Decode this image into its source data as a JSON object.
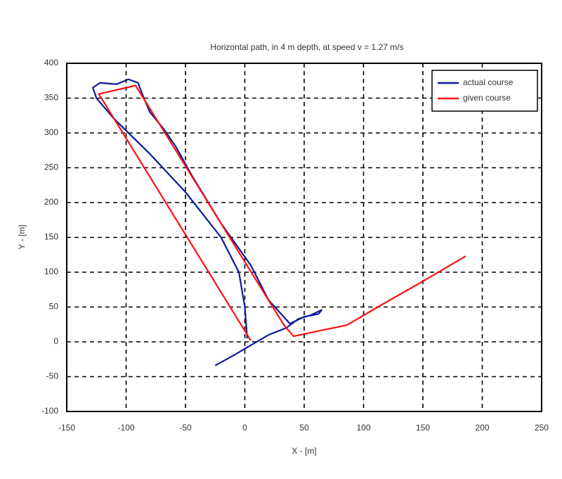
{
  "chart_data": {
    "type": "line",
    "title": "Horizontal path, in 4 m depth, at speed v = 1.27 m/s",
    "x_label": "X - [m]",
    "y_label": "Y - [m]",
    "xlim": [
      -150,
      250
    ],
    "ylim": [
      -100,
      400
    ],
    "xticks": [
      -150,
      -100,
      -50,
      0,
      50,
      100,
      150,
      200,
      250
    ],
    "yticks": [
      -100,
      -50,
      0,
      50,
      100,
      150,
      200,
      250,
      300,
      350,
      400
    ],
    "grid": true,
    "legend": "upper right",
    "series": [
      {
        "name": "actual course",
        "color": "#0a1a9a",
        "x": [
          -25,
          -10,
          5,
          20,
          35,
          45,
          55,
          65,
          62,
          50,
          38,
          20,
          5,
          -20,
          -45,
          -58,
          -68,
          -80,
          -85,
          -90,
          -98,
          -108,
          -122,
          -128,
          -125,
          -110,
          -80,
          -50,
          -20,
          -5,
          0,
          2
        ],
        "values": [
          -34,
          -20,
          -5,
          10,
          20,
          33,
          38,
          46,
          40,
          36,
          26,
          60,
          110,
          170,
          240,
          280,
          305,
          330,
          350,
          372,
          377,
          370,
          372,
          365,
          350,
          320,
          270,
          215,
          150,
          100,
          50,
          5
        ]
      },
      {
        "name": "given course",
        "color": "#ff1010",
        "x": [
          5,
          -123,
          -92,
          33,
          41,
          63,
          86,
          113,
          148,
          186
        ],
        "values": [
          2,
          356,
          368,
          24,
          8,
          16,
          24,
          51,
          85,
          123
        ]
      }
    ]
  }
}
